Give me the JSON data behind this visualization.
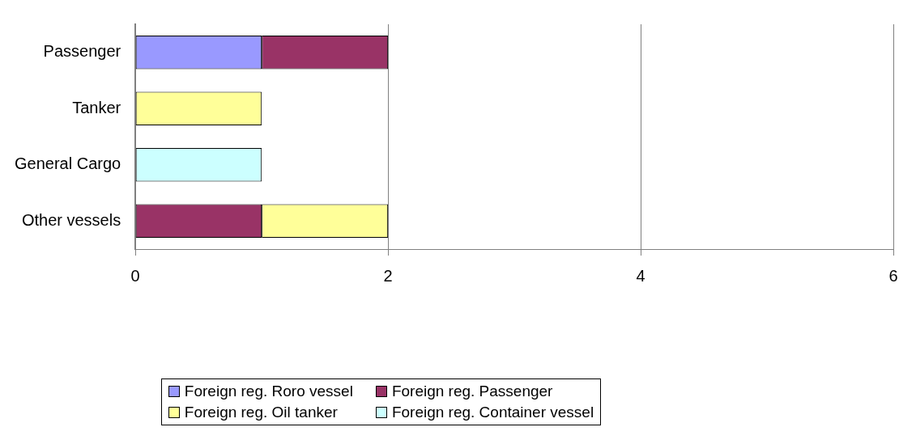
{
  "chart_data": {
    "type": "bar",
    "orientation": "horizontal",
    "stacked": true,
    "categories": [
      "Passenger",
      "Tanker",
      "General Cargo",
      "Other vessels"
    ],
    "series": [
      {
        "name": "Foreign reg. Roro vessel",
        "color": "#9999ff",
        "values": [
          1,
          null,
          null,
          null
        ]
      },
      {
        "name": "Foreign reg. Passenger",
        "color": "#993366",
        "values": [
          1,
          null,
          null,
          1
        ]
      },
      {
        "name": "Foreign reg. Oil tanker",
        "color": "#ffff99",
        "values": [
          null,
          1,
          null,
          1
        ]
      },
      {
        "name": "Foreign reg. Container vessel",
        "color": "#ccffff",
        "values": [
          null,
          null,
          1,
          null
        ]
      }
    ],
    "xlim": [
      0,
      6
    ],
    "xticks": [
      0,
      2,
      4,
      6
    ],
    "grid": "x",
    "legend": "bottom"
  }
}
